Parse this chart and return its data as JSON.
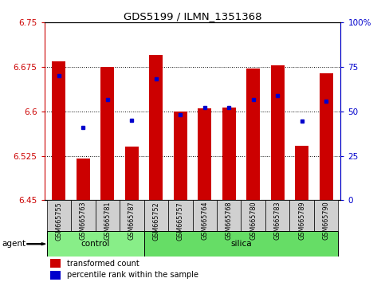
{
  "title": "GDS5199 / ILMN_1351368",
  "samples": [
    "GSM665755",
    "GSM665763",
    "GSM665781",
    "GSM665787",
    "GSM665752",
    "GSM665757",
    "GSM665764",
    "GSM665768",
    "GSM665780",
    "GSM665783",
    "GSM665789",
    "GSM665790"
  ],
  "bar_values": [
    6.685,
    6.52,
    6.675,
    6.54,
    6.695,
    6.6,
    6.605,
    6.607,
    6.672,
    6.678,
    6.542,
    6.665
  ],
  "dot_values": [
    6.66,
    6.573,
    6.62,
    6.585,
    6.655,
    6.595,
    6.607,
    6.607,
    6.62,
    6.627,
    6.583,
    6.617
  ],
  "ymin": 6.45,
  "ymax": 6.75,
  "yticks": [
    6.45,
    6.525,
    6.6,
    6.675,
    6.75
  ],
  "ytick_labels": [
    "6.45",
    "6.525",
    "6.6",
    "6.675",
    "6.75"
  ],
  "right_yticks_pct": [
    0,
    25,
    50,
    75,
    100
  ],
  "right_ytick_labels": [
    "0",
    "25",
    "50",
    "75",
    "100%"
  ],
  "grid_lines": [
    6.525,
    6.6,
    6.675
  ],
  "control_count": 4,
  "silica_count": 8,
  "bar_color": "#cc0000",
  "dot_color": "#0000cc",
  "control_color": "#88ee88",
  "silica_color": "#66dd66",
  "agent_label": "agent",
  "control_label": "control",
  "silica_label": "silica",
  "legend_bar_label": "transformed count",
  "legend_dot_label": "percentile rank within the sample",
  "bar_width": 0.55,
  "bg_color": "#ffffff",
  "label_area_color": "#d0d0d0"
}
